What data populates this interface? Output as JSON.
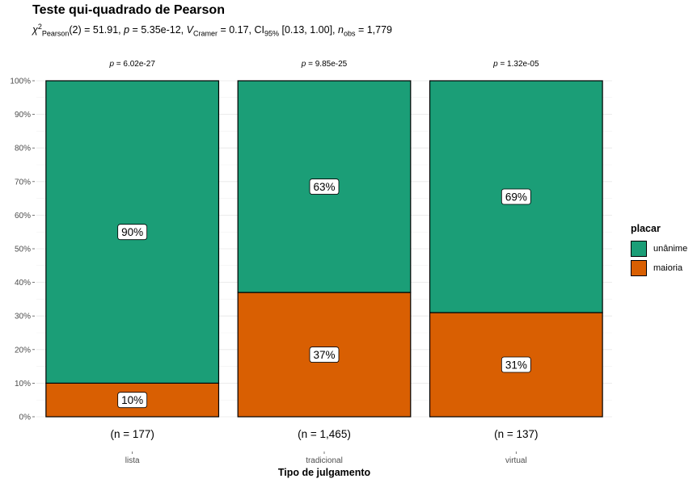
{
  "title": "Teste qui-quadrado de Pearson",
  "subtitle": {
    "chi_symbol": "χ",
    "chi_sup": "2",
    "chi_sub": "Pearson",
    "chi_text": "(2) = 51.91, ",
    "p_symbol": "p",
    "p_text": " = 5.35e-12, ",
    "v_symbol": "V",
    "v_sub": "Cramer",
    "v_text": " = 0.17, CI",
    "ci_sub": "95%",
    "ci_text": " [0.13, 1.00], ",
    "n_symbol": "n",
    "n_sub": "obs",
    "n_text": " = 1,779"
  },
  "legend": {
    "title": "placar",
    "items": [
      {
        "label": "unânime",
        "color": "#1B9E77"
      },
      {
        "label": "maioria",
        "color": "#D95F02"
      }
    ]
  },
  "chart_data": {
    "type": "bar",
    "stacked": true,
    "title": "Teste qui-quadrado de Pearson",
    "xlabel": "Tipo de julgamento",
    "ylabel": "",
    "ylim": [
      0,
      100
    ],
    "y_ticks": [
      "0%",
      "10%",
      "20%",
      "30%",
      "40%",
      "50%",
      "60%",
      "70%",
      "80%",
      "90%",
      "100%"
    ],
    "categories": [
      "lista",
      "tradicional",
      "virtual"
    ],
    "counts": [
      "(n = 177)",
      "(n = 1,465)",
      "(n = 137)"
    ],
    "p_values": [
      "= 6.02e-27",
      "= 9.85e-25",
      "= 1.32e-05"
    ],
    "series": [
      {
        "name": "maioria",
        "color": "#D95F02",
        "values": [
          10,
          37,
          31
        ],
        "labels": [
          "10%",
          "37%",
          "31%"
        ]
      },
      {
        "name": "unânime",
        "color": "#1B9E77",
        "values": [
          90,
          63,
          69
        ],
        "labels": [
          "90%",
          "63%",
          "69%"
        ]
      }
    ],
    "grid": true,
    "legend_position": "right"
  }
}
